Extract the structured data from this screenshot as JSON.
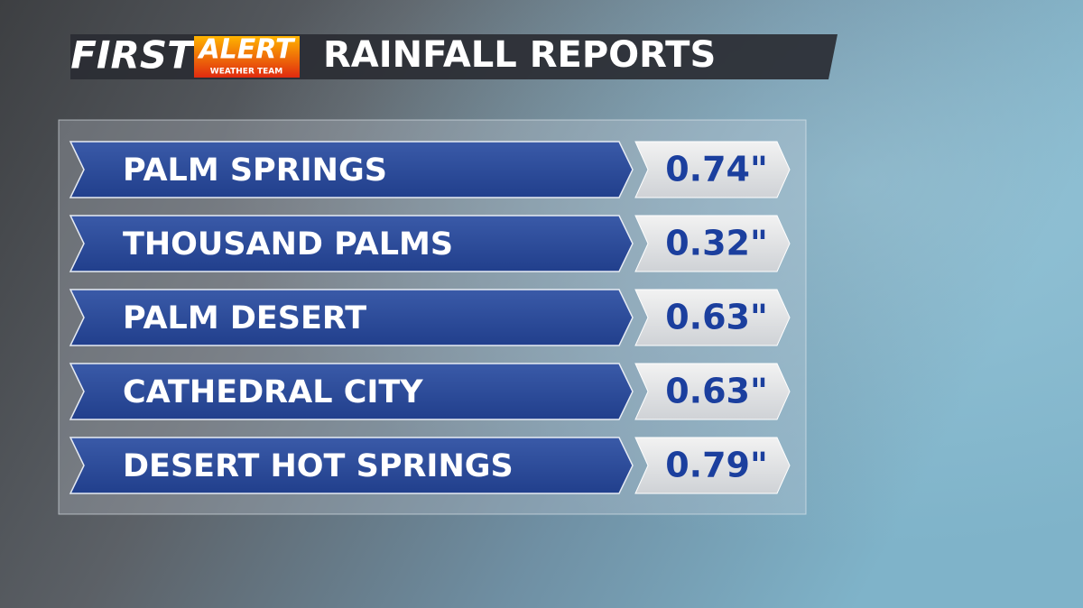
{
  "header": {
    "brand": "FIRST",
    "alert": "ALERT",
    "team": "WEATHER TEAM",
    "title": "RAINFALL REPORTS"
  },
  "table": {
    "rows": [
      [
        "PALM SPRINGS",
        "0.74\""
      ],
      [
        "THOUSAND PALMS",
        "0.32\""
      ],
      [
        "PALM DESERT",
        "0.63\""
      ],
      [
        "CATHEDRAL CITY",
        "0.63\""
      ],
      [
        "DESERT HOT SPRINGS",
        "0.79\""
      ]
    ]
  }
}
